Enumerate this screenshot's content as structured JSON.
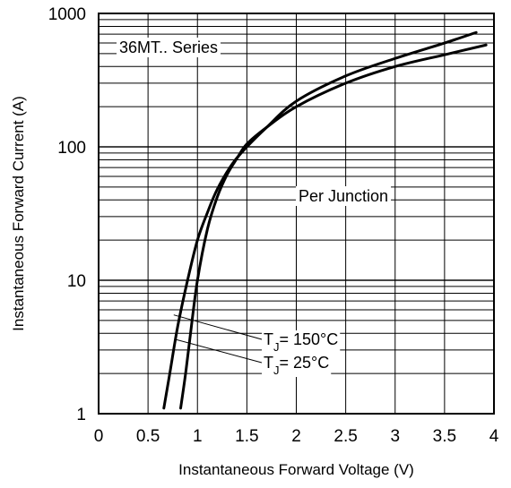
{
  "chart_data": {
    "type": "line",
    "title": "",
    "xlabel": "Instantaneous Forward Voltage (V)",
    "ylabel": "Instantaneous Forward Current (A)",
    "xlim": [
      0,
      4
    ],
    "ylim": [
      1,
      1000
    ],
    "yscale": "log",
    "grid": true,
    "x_ticks": [
      0,
      0.5,
      1,
      1.5,
      2,
      2.5,
      3,
      3.5,
      4
    ],
    "x_tick_labels": [
      "0",
      "0.5",
      "1",
      "1.5",
      "2",
      "2.5",
      "3",
      "3.5",
      "4"
    ],
    "y_ticks": [
      1,
      10,
      100,
      1000
    ],
    "y_tick_labels": [
      "1",
      "10",
      "100",
      "1000"
    ],
    "series": [
      {
        "name_parts": {
          "prefix": "T",
          "subscript": "J",
          "suffix": "= 150°C"
        },
        "x": [
          0.66,
          0.72,
          0.8,
          0.9,
          1.0,
          1.1,
          1.2,
          1.35,
          1.5,
          1.7,
          2.0,
          2.5,
          3.0,
          3.5,
          3.82
        ],
        "y": [
          1.1,
          2.0,
          4.5,
          10,
          20,
          32,
          48,
          74,
          100,
          140,
          220,
          340,
          460,
          600,
          720
        ]
      },
      {
        "name_parts": {
          "prefix": "T",
          "subscript": "J",
          "suffix": "= 25°C"
        },
        "x": [
          0.83,
          0.88,
          0.93,
          1.0,
          1.1,
          1.2,
          1.3,
          1.4,
          1.5,
          1.7,
          2.0,
          2.5,
          3.0,
          3.5,
          3.92
        ],
        "y": [
          1.1,
          2.0,
          4.0,
          10,
          24,
          42,
          62,
          82,
          105,
          140,
          200,
          300,
          400,
          490,
          580
        ]
      }
    ],
    "annotations": {
      "series_label": "36MT.. Series",
      "per_junction": "Per Junction"
    }
  }
}
